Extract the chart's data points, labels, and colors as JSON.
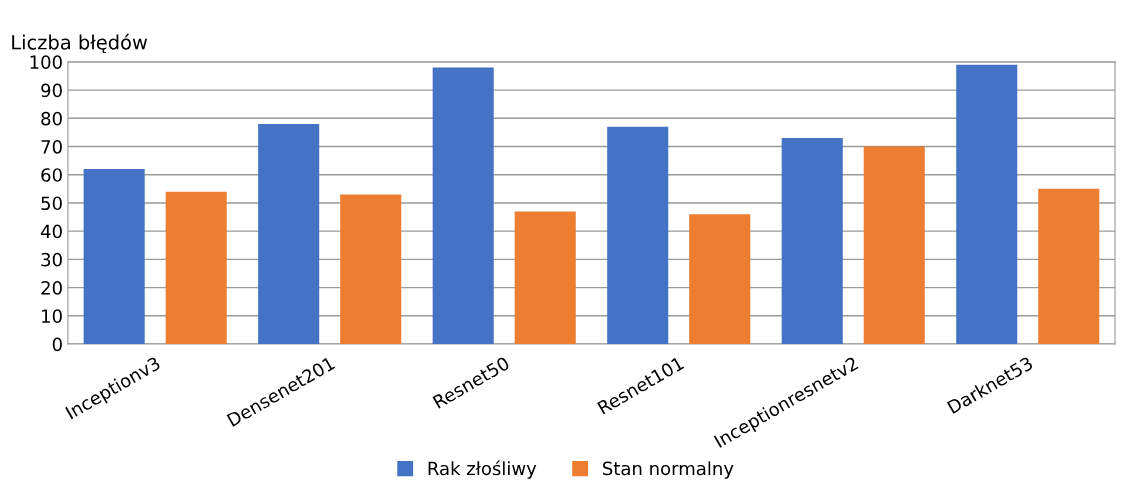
{
  "chart_data": {
    "type": "bar",
    "ylabel": "Liczba błędów",
    "categories": [
      "Inceptionv3",
      "Densenet201",
      "Resnet50",
      "Resnet101",
      "Inceptionresnetv2",
      "Darknet53"
    ],
    "series": [
      {
        "name": "Rak złośliwy",
        "color": "#4472c4",
        "values": [
          62,
          78,
          98,
          77,
          73,
          99
        ]
      },
      {
        "name": "Stan normalny",
        "color": "#ed7d31",
        "values": [
          54,
          53,
          47,
          46,
          70,
          55
        ]
      }
    ],
    "ylim": [
      0,
      100
    ],
    "yticks": [
      0,
      10,
      20,
      30,
      40,
      50,
      60,
      70,
      80,
      90,
      100
    ],
    "grid": "y",
    "legend": "bottom"
  }
}
